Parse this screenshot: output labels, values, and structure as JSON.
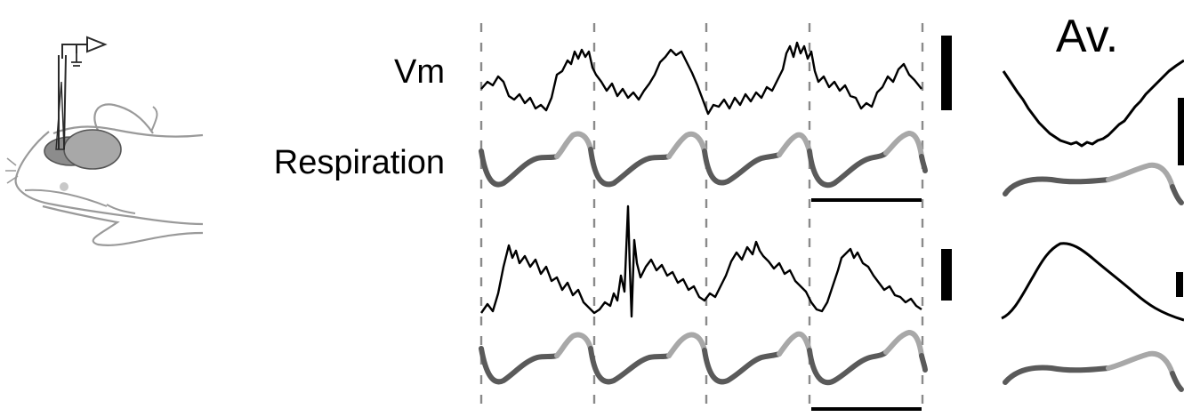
{
  "labels": {
    "vm": "Vm",
    "respiration": "Respiration",
    "average": "Av."
  },
  "colors": {
    "trace": "#000000",
    "respiration_dark": "#5a5a5a",
    "respiration_light": "#a8a8a8",
    "dashed_line": "#8a8a8a",
    "mouse_outline": "#9a9a9a",
    "brain_fill": "#a0a0a0",
    "electrode": "#2a2a2a"
  },
  "icons": {
    "recording_setup": "mouse-head-electrode-icon",
    "amplifier": "amplifier-triangle-icon"
  }
}
